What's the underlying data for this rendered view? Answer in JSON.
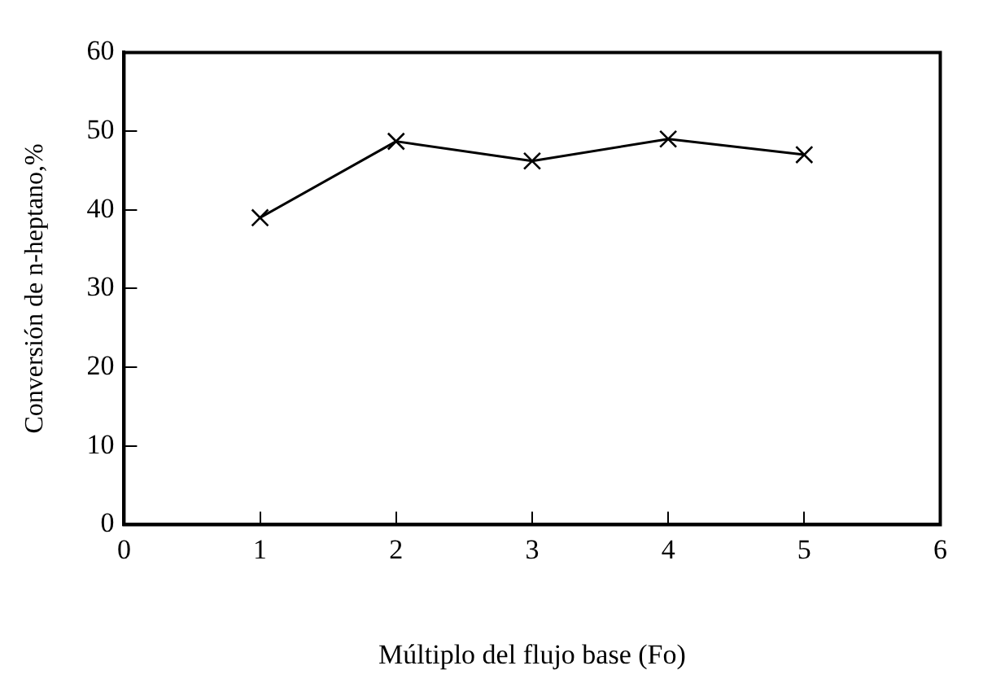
{
  "chart_data": {
    "type": "line",
    "xlabel": "Múltiplo del flujo base (Fo)",
    "ylabel": "Conversión de n-heptano,%",
    "x": [
      1,
      2,
      3,
      4,
      5
    ],
    "series": [
      {
        "color": "#000000",
        "values": [
          39,
          48.7,
          46.2,
          49,
          47
        ]
      }
    ],
    "xlim": [
      0,
      6
    ],
    "xticks": [
      0,
      1,
      2,
      3,
      4,
      5,
      6
    ],
    "ylim": [
      0,
      60
    ],
    "yticks": [
      0,
      10,
      20,
      30,
      40,
      50,
      60
    ],
    "grid": false,
    "legend": false,
    "marker": "cross",
    "line_style": "solid"
  }
}
